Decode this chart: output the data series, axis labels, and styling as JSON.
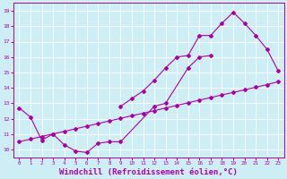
{
  "xlabel": "Windchill (Refroidissement éolien,°C)",
  "xlim": [
    -0.5,
    23.5
  ],
  "ylim": [
    9.5,
    19.5
  ],
  "xticks": [
    0,
    1,
    2,
    3,
    4,
    5,
    6,
    7,
    8,
    9,
    10,
    11,
    12,
    13,
    14,
    15,
    16,
    17,
    18,
    19,
    20,
    21,
    22,
    23
  ],
  "yticks": [
    10,
    11,
    12,
    13,
    14,
    15,
    16,
    17,
    18,
    19
  ],
  "background_color": "#cdeef5",
  "line_color": "#aa00aa",
  "line1_x": [
    0,
    1,
    2,
    3,
    4,
    5,
    6,
    7,
    8,
    9,
    12,
    13,
    15,
    16,
    17
  ],
  "line1_y": [
    12.7,
    12.1,
    10.6,
    11.0,
    10.3,
    9.9,
    9.8,
    10.4,
    10.5,
    10.5,
    12.8,
    13.0,
    15.3,
    16.0,
    16.1
  ],
  "line2_x": [
    9,
    10,
    11,
    12,
    13,
    14,
    15,
    16,
    17,
    18,
    19,
    20,
    21,
    22,
    23
  ],
  "line2_y": [
    12.8,
    13.3,
    13.8,
    14.5,
    15.3,
    16.0,
    16.1,
    17.4,
    17.4,
    18.2,
    18.9,
    18.2,
    17.4,
    16.5,
    15.1
  ],
  "line3_x": [
    0,
    1,
    2,
    3,
    4,
    5,
    6,
    7,
    8,
    9,
    10,
    11,
    12,
    13,
    14,
    15,
    16,
    17,
    18,
    19,
    20,
    21,
    22,
    23
  ],
  "line3_y": [
    10.5,
    10.67,
    10.84,
    11.01,
    11.17,
    11.34,
    11.51,
    11.68,
    11.85,
    12.02,
    12.19,
    12.35,
    12.52,
    12.69,
    12.86,
    13.03,
    13.2,
    13.37,
    13.54,
    13.7,
    13.87,
    14.04,
    14.21,
    14.4
  ],
  "font_size_xlabel": 6.5,
  "marker": "D",
  "markersize": 2.0,
  "linewidth": 0.8
}
